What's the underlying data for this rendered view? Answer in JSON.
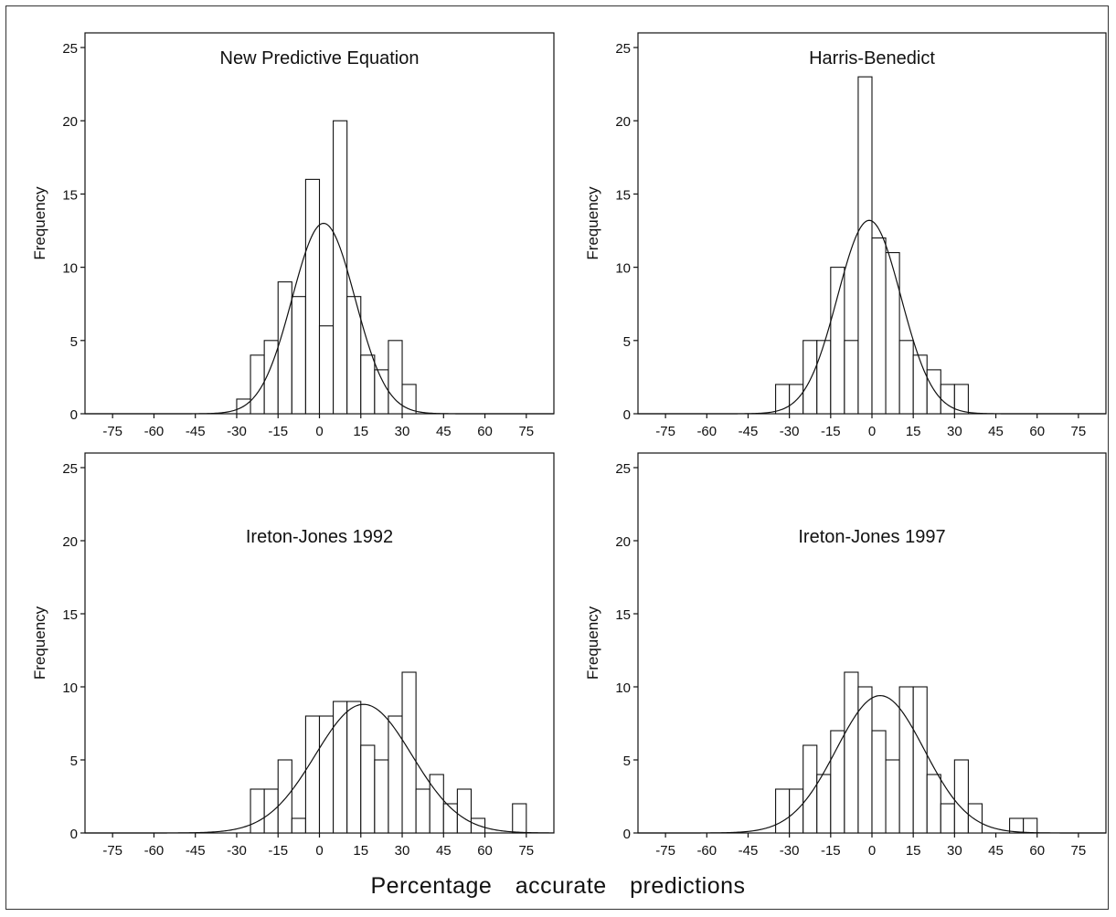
{
  "figure": {
    "xlabel": "Percentage accurate predictions"
  },
  "chart_data": [
    {
      "type": "bar",
      "title": "New Predictive Equation",
      "ylabel": "Frequency",
      "xlim": [
        -85,
        85
      ],
      "ylim": [
        0,
        26
      ],
      "xticks": [
        -75,
        -60,
        -45,
        -30,
        -15,
        0,
        15,
        30,
        45,
        60,
        75
      ],
      "yticks": [
        0,
        5,
        10,
        15,
        20,
        25
      ],
      "bin_width": 5,
      "bins": [
        {
          "x": -30,
          "count": 1
        },
        {
          "x": -25,
          "count": 4
        },
        {
          "x": -20,
          "count": 5
        },
        {
          "x": -15,
          "count": 9
        },
        {
          "x": -10,
          "count": 8
        },
        {
          "x": -5,
          "count": 16
        },
        {
          "x": 0,
          "count": 6
        },
        {
          "x": 5,
          "count": 20
        },
        {
          "x": 10,
          "count": 8
        },
        {
          "x": 15,
          "count": 4
        },
        {
          "x": 20,
          "count": 3
        },
        {
          "x": 25,
          "count": 5
        },
        {
          "x": 30,
          "count": 2
        }
      ],
      "normal_fit": {
        "mean": 1.5,
        "sd": 11.4,
        "peak": 13
      }
    },
    {
      "type": "bar",
      "title": "Harris-Benedict",
      "ylabel": "Frequency",
      "xlim": [
        -85,
        85
      ],
      "ylim": [
        0,
        26
      ],
      "xticks": [
        -75,
        -60,
        -45,
        -30,
        -15,
        0,
        15,
        30,
        45,
        60,
        75
      ],
      "yticks": [
        0,
        5,
        10,
        15,
        20,
        25
      ],
      "bin_width": 5,
      "bins": [
        {
          "x": -35,
          "count": 2
        },
        {
          "x": -30,
          "count": 2
        },
        {
          "x": -25,
          "count": 5
        },
        {
          "x": -20,
          "count": 5
        },
        {
          "x": -15,
          "count": 10
        },
        {
          "x": -10,
          "count": 5
        },
        {
          "x": -5,
          "count": 23
        },
        {
          "x": 0,
          "count": 12
        },
        {
          "x": 5,
          "count": 11
        },
        {
          "x": 10,
          "count": 5
        },
        {
          "x": 15,
          "count": 4
        },
        {
          "x": 20,
          "count": 3
        },
        {
          "x": 25,
          "count": 2
        },
        {
          "x": 30,
          "count": 2
        }
      ],
      "normal_fit": {
        "mean": -1,
        "sd": 11.5,
        "peak": 13.2
      }
    },
    {
      "type": "bar",
      "title": "Ireton-Jones 1992",
      "ylabel": "Frequency",
      "xlim": [
        -85,
        85
      ],
      "ylim": [
        0,
        26
      ],
      "xticks": [
        -75,
        -60,
        -45,
        -30,
        -15,
        0,
        15,
        30,
        45,
        60,
        75
      ],
      "yticks": [
        0,
        5,
        10,
        15,
        20,
        25
      ],
      "bin_width": 5,
      "bins": [
        {
          "x": -25,
          "count": 3
        },
        {
          "x": -20,
          "count": 3
        },
        {
          "x": -15,
          "count": 5
        },
        {
          "x": -10,
          "count": 1
        },
        {
          "x": -5,
          "count": 8
        },
        {
          "x": 0,
          "count": 8
        },
        {
          "x": 5,
          "count": 9
        },
        {
          "x": 10,
          "count": 9
        },
        {
          "x": 15,
          "count": 6
        },
        {
          "x": 20,
          "count": 5
        },
        {
          "x": 25,
          "count": 8
        },
        {
          "x": 30,
          "count": 11
        },
        {
          "x": 35,
          "count": 3
        },
        {
          "x": 40,
          "count": 4
        },
        {
          "x": 45,
          "count": 2
        },
        {
          "x": 50,
          "count": 3
        },
        {
          "x": 55,
          "count": 1
        },
        {
          "x": 70,
          "count": 2
        }
      ],
      "normal_fit": {
        "mean": 16,
        "sd": 17.5,
        "peak": 8.8
      }
    },
    {
      "type": "bar",
      "title": "Ireton-Jones 1997",
      "ylabel": "Frequency",
      "xlim": [
        -85,
        85
      ],
      "ylim": [
        0,
        26
      ],
      "xticks": [
        -75,
        -60,
        -45,
        -30,
        -15,
        0,
        15,
        30,
        45,
        60,
        75
      ],
      "yticks": [
        0,
        5,
        10,
        15,
        20,
        25
      ],
      "bin_width": 5,
      "bins": [
        {
          "x": -35,
          "count": 3
        },
        {
          "x": -30,
          "count": 3
        },
        {
          "x": -25,
          "count": 6
        },
        {
          "x": -20,
          "count": 4
        },
        {
          "x": -15,
          "count": 7
        },
        {
          "x": -10,
          "count": 11
        },
        {
          "x": -5,
          "count": 10
        },
        {
          "x": 0,
          "count": 7
        },
        {
          "x": 5,
          "count": 5
        },
        {
          "x": 10,
          "count": 10
        },
        {
          "x": 15,
          "count": 10
        },
        {
          "x": 20,
          "count": 4
        },
        {
          "x": 25,
          "count": 2
        },
        {
          "x": 30,
          "count": 5
        },
        {
          "x": 35,
          "count": 2
        },
        {
          "x": 50,
          "count": 1
        },
        {
          "x": 55,
          "count": 1
        }
      ],
      "normal_fit": {
        "mean": 3,
        "sd": 16,
        "peak": 9.4
      }
    }
  ]
}
